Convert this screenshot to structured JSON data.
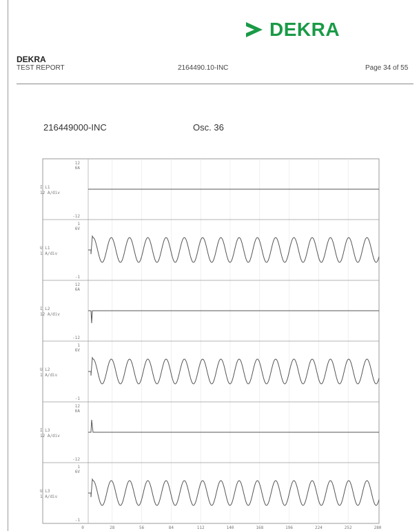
{
  "logo": {
    "text": "DEKRA",
    "color": "#1a9a46",
    "icon": "dekra-arrow-icon"
  },
  "header": {
    "company": "DEKRA",
    "report_label": "TEST REPORT",
    "report_number": "2164490.10-INC",
    "page": "Page 34 of 55"
  },
  "record": {
    "test_id": "216449000-INC",
    "osc": "Osc. 36"
  },
  "chart_data": {
    "type": "line",
    "trace_color": "#555555",
    "grid": true,
    "x_ticks": [
      "0",
      "28",
      "56",
      "84",
      "112",
      "140",
      "168",
      "196",
      "224",
      "252",
      "280"
    ],
    "panels": [
      {
        "label": [
          "I L1",
          "12 A/div"
        ],
        "top": "12",
        "top2": "6A",
        "bottom": "-12",
        "signal": "flat"
      },
      {
        "label": [
          "U L1",
          "1 A/div"
        ],
        "top": "1",
        "top2": "6V",
        "bottom": "-1",
        "signal": "sine"
      },
      {
        "label": [
          "I L2",
          "12 A/div"
        ],
        "top": "12",
        "top2": "6A",
        "bottom": "-12",
        "signal": "spike-down"
      },
      {
        "label": [
          "U L2",
          "1 A/div"
        ],
        "top": "1",
        "top2": "6V",
        "bottom": "-1",
        "signal": "sine"
      },
      {
        "label": [
          "I L3",
          "12 A/div"
        ],
        "top": "12",
        "top2": "6A",
        "bottom": "-12",
        "signal": "spike-up"
      },
      {
        "label": [
          "U L3",
          "1 A/div"
        ],
        "top": "1",
        "top2": "6V",
        "bottom": "-1",
        "signal": "sine"
      }
    ]
  }
}
